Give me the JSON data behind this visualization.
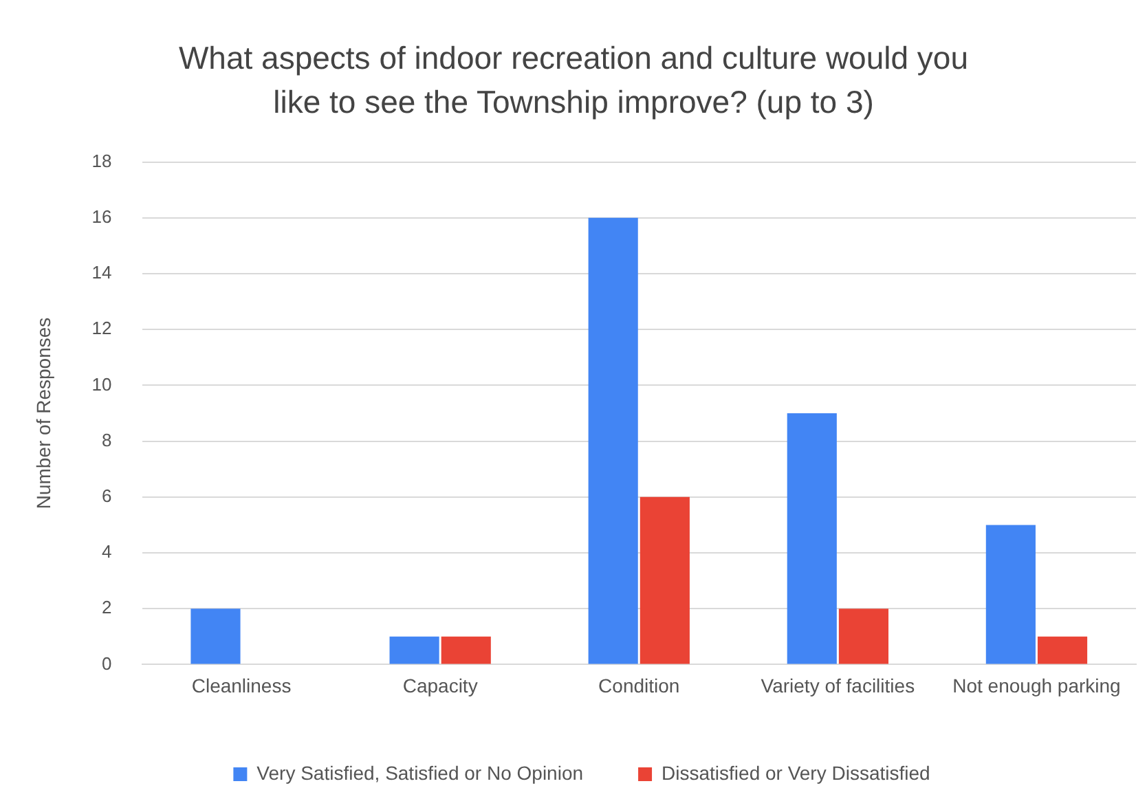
{
  "chart_data": {
    "type": "bar",
    "title": "What aspects of indoor recreation and culture would you like to see the Township improve? (up to 3)",
    "ylabel": "Number of Responses",
    "categories": [
      "Cleanliness",
      "Capacity",
      "Condition",
      "Variety of facilities",
      "Not enough parking"
    ],
    "series": [
      {
        "name": "Very Satisfied, Satisfied or No Opinion",
        "color": "#4285f4",
        "values": [
          2,
          1,
          16,
          9,
          5
        ]
      },
      {
        "name": "Dissatisfied or Very Dissatisfied",
        "color": "#ea4335",
        "values": [
          0,
          1,
          6,
          2,
          1
        ]
      }
    ],
    "ylim": [
      0,
      18
    ],
    "yticks": [
      0,
      2,
      4,
      6,
      8,
      10,
      12,
      14,
      16,
      18
    ],
    "grid": "y",
    "legend": "bottom"
  }
}
